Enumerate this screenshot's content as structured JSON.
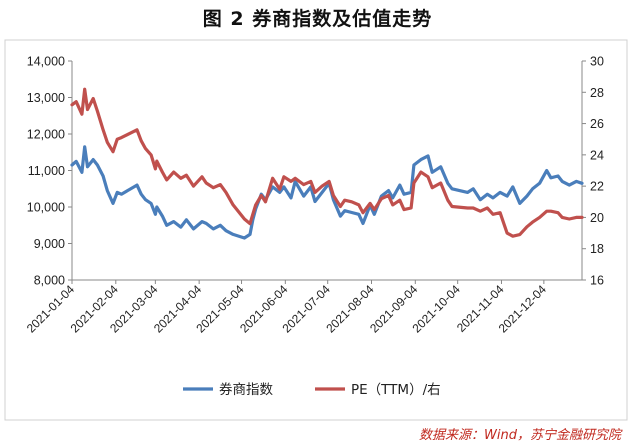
{
  "title": "图 2  券商指数及估值走势",
  "source": "数据来源：Wind，苏宁金融研究院",
  "chart_data": {
    "type": "line",
    "title": "图 2  券商指数及估值走势",
    "left_axis": {
      "min": 8000,
      "max": 14000,
      "step": 1000,
      "tick_labels": [
        "8,000",
        "9,000",
        "10,000",
        "11,000",
        "12,000",
        "13,000",
        "14,000"
      ]
    },
    "right_axis": {
      "min": 16,
      "max": 30,
      "step": 2,
      "tick_labels": [
        "16",
        "18",
        "20",
        "22",
        "24",
        "26",
        "28",
        "30"
      ]
    },
    "x_tick_labels": [
      "2021-01-04",
      "2021-02-04",
      "2021-03-04",
      "2021-04-04",
      "2021-05-04",
      "2021-06-04",
      "2021-07-04",
      "2021-08-04",
      "2021-09-04",
      "2021-10-04",
      "2021-11-04",
      "2021-12-04"
    ],
    "legend_position": "bottom",
    "grid": false,
    "series": [
      {
        "name": "券商指数",
        "axis": "left",
        "color": "#4a7ebb",
        "x": [
          "2021-01-04",
          "2021-01-07",
          "2021-01-11",
          "2021-01-13",
          "2021-01-15",
          "2021-01-19",
          "2021-01-22",
          "2021-01-26",
          "2021-01-29",
          "2021-02-02",
          "2021-02-05",
          "2021-02-08",
          "2021-02-19",
          "2021-02-22",
          "2021-02-25",
          "2021-03-01",
          "2021-03-04",
          "2021-03-05",
          "2021-03-09",
          "2021-03-12",
          "2021-03-17",
          "2021-03-22",
          "2021-03-26",
          "2021-03-31",
          "2021-04-06",
          "2021-04-09",
          "2021-04-14",
          "2021-04-19",
          "2021-04-23",
          "2021-04-28",
          "2021-05-06",
          "2021-05-10",
          "2021-05-12",
          "2021-05-14",
          "2021-05-18",
          "2021-05-21",
          "2021-05-26",
          "2021-05-31",
          "2021-06-03",
          "2021-06-08",
          "2021-06-11",
          "2021-06-17",
          "2021-06-22",
          "2021-06-25",
          "2021-06-30",
          "2021-07-05",
          "2021-07-08",
          "2021-07-13",
          "2021-07-16",
          "2021-07-21",
          "2021-07-26",
          "2021-07-29",
          "2021-08-03",
          "2021-08-06",
          "2021-08-11",
          "2021-08-16",
          "2021-08-19",
          "2021-08-24",
          "2021-08-27",
          "2021-09-01",
          "2021-09-03",
          "2021-09-08",
          "2021-09-13",
          "2021-09-16",
          "2021-09-22",
          "2021-09-27",
          "2021-09-30",
          "2021-10-11",
          "2021-10-15",
          "2021-10-20",
          "2021-10-25",
          "2021-10-29",
          "2021-11-03",
          "2021-11-08",
          "2021-11-12",
          "2021-11-17",
          "2021-11-22",
          "2021-11-26",
          "2021-12-01",
          "2021-12-06",
          "2021-12-09",
          "2021-12-14",
          "2021-12-17",
          "2021-12-22",
          "2021-12-27",
          "2021-12-31"
        ],
        "values": [
          11150,
          11250,
          10950,
          11650,
          11100,
          11300,
          11150,
          10850,
          10450,
          10100,
          10400,
          10350,
          10600,
          10350,
          10200,
          10100,
          9800,
          10000,
          9750,
          9500,
          9600,
          9450,
          9650,
          9400,
          9600,
          9550,
          9400,
          9500,
          9350,
          9250,
          9150,
          9250,
          9650,
          9950,
          10350,
          10200,
          10550,
          10400,
          10550,
          10250,
          10700,
          10300,
          10550,
          10150,
          10400,
          10650,
          10200,
          9750,
          9900,
          9850,
          9800,
          9550,
          10050,
          9800,
          10300,
          10450,
          10250,
          10600,
          10350,
          10400,
          11150,
          11300,
          11400,
          10950,
          11100,
          10650,
          10500,
          10400,
          10500,
          10200,
          10350,
          10250,
          10400,
          10300,
          10550,
          10100,
          10300,
          10500,
          10650,
          11000,
          10800,
          10850,
          10700,
          10600,
          10700,
          10650
        ]
      },
      {
        "name": "PE（TTM）/右",
        "axis": "right",
        "color": "#c0504d",
        "x": [
          "2021-01-04",
          "2021-01-07",
          "2021-01-11",
          "2021-01-13",
          "2021-01-15",
          "2021-01-19",
          "2021-01-22",
          "2021-01-26",
          "2021-01-29",
          "2021-02-02",
          "2021-02-05",
          "2021-02-08",
          "2021-02-19",
          "2021-02-22",
          "2021-02-25",
          "2021-03-01",
          "2021-03-04",
          "2021-03-05",
          "2021-03-09",
          "2021-03-12",
          "2021-03-17",
          "2021-03-22",
          "2021-03-26",
          "2021-03-31",
          "2021-04-06",
          "2021-04-09",
          "2021-04-14",
          "2021-04-19",
          "2021-04-23",
          "2021-04-28",
          "2021-05-06",
          "2021-05-10",
          "2021-05-12",
          "2021-05-14",
          "2021-05-18",
          "2021-05-21",
          "2021-05-26",
          "2021-05-31",
          "2021-06-03",
          "2021-06-08",
          "2021-06-11",
          "2021-06-17",
          "2021-06-22",
          "2021-06-25",
          "2021-06-30",
          "2021-07-05",
          "2021-07-08",
          "2021-07-13",
          "2021-07-16",
          "2021-07-21",
          "2021-07-26",
          "2021-07-29",
          "2021-08-03",
          "2021-08-06",
          "2021-08-11",
          "2021-08-16",
          "2021-08-19",
          "2021-08-24",
          "2021-08-27",
          "2021-09-01",
          "2021-09-03",
          "2021-09-08",
          "2021-09-13",
          "2021-09-16",
          "2021-09-22",
          "2021-09-27",
          "2021-09-30",
          "2021-10-11",
          "2021-10-15",
          "2021-10-20",
          "2021-10-25",
          "2021-10-29",
          "2021-11-03",
          "2021-11-08",
          "2021-11-12",
          "2021-11-17",
          "2021-11-22",
          "2021-11-26",
          "2021-12-01",
          "2021-12-06",
          "2021-12-09",
          "2021-12-14",
          "2021-12-17",
          "2021-12-22",
          "2021-12-27",
          "2021-12-31"
        ],
        "values": [
          27.2,
          27.4,
          26.6,
          28.2,
          26.9,
          27.6,
          26.8,
          25.6,
          24.8,
          24.2,
          25.0,
          25.1,
          25.6,
          24.9,
          24.4,
          24.0,
          23.1,
          23.6,
          22.9,
          22.4,
          22.9,
          22.5,
          22.7,
          22.0,
          22.6,
          22.2,
          21.9,
          22.1,
          21.6,
          20.8,
          19.9,
          19.6,
          20.2,
          20.8,
          21.4,
          21.0,
          22.5,
          21.8,
          22.6,
          22.3,
          22.5,
          22.1,
          22.3,
          21.6,
          22.0,
          22.3,
          21.4,
          20.7,
          21.1,
          21.0,
          20.8,
          20.3,
          20.9,
          20.5,
          21.2,
          21.4,
          20.8,
          21.1,
          20.5,
          20.6,
          22.2,
          22.9,
          22.6,
          21.9,
          22.2,
          21.1,
          20.7,
          20.6,
          20.6,
          20.4,
          20.6,
          20.2,
          20.3,
          19.0,
          18.8,
          18.9,
          19.4,
          19.7,
          20.0,
          20.4,
          20.4,
          20.3,
          20.0,
          19.9,
          20.0,
          20.0
        ]
      }
    ]
  }
}
